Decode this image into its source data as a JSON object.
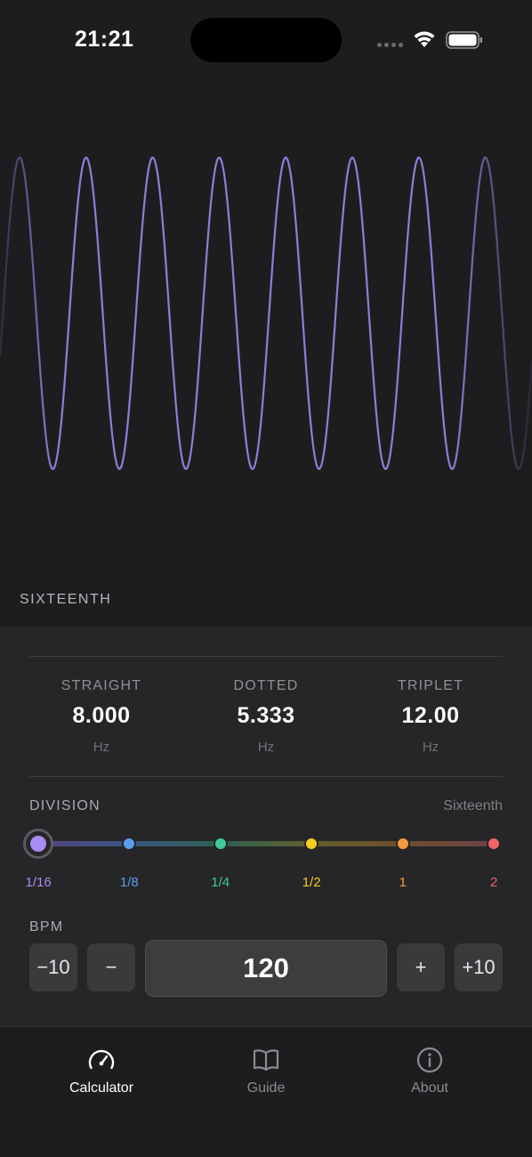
{
  "status_bar": {
    "time": "21:21"
  },
  "waveform": {
    "color": "#9d86ec",
    "cycles_visible": 8,
    "caption": "SIXTEENTH"
  },
  "rates": [
    {
      "label": "STRAIGHT",
      "value": "8.000",
      "unit": "Hz"
    },
    {
      "label": "DOTTED",
      "value": "5.333",
      "unit": "Hz"
    },
    {
      "label": "TRIPLET",
      "value": "12.00",
      "unit": "Hz"
    }
  ],
  "division": {
    "label": "DIVISION",
    "selected_name": "Sixteenth",
    "stops": [
      {
        "label": "1/16",
        "color": "#a98cf4",
        "selected": true
      },
      {
        "label": "1/8",
        "color": "#5b9cf0",
        "selected": false
      },
      {
        "label": "1/4",
        "color": "#3ec99a",
        "selected": false
      },
      {
        "label": "1/2",
        "color": "#f2cc20",
        "selected": false
      },
      {
        "label": "1",
        "color": "#f29a3c",
        "selected": false
      },
      {
        "label": "2",
        "color": "#f0646a",
        "selected": false
      }
    ]
  },
  "bpm": {
    "label": "BPM",
    "value": "120",
    "minus_ten": "−10",
    "minus_one": "−",
    "plus_one": "+",
    "plus_ten": "+10"
  },
  "tabs": [
    {
      "label": "Calculator",
      "icon": "speedometer-icon",
      "active": true
    },
    {
      "label": "Guide",
      "icon": "book-icon",
      "active": false
    },
    {
      "label": "About",
      "icon": "info-icon",
      "active": false
    }
  ],
  "colors": {
    "background": "#1d1d1f",
    "panel": "#262628",
    "accent": "#9d86ec",
    "tab_active": "#ffffff",
    "tab_inactive": "#8a8a90"
  }
}
